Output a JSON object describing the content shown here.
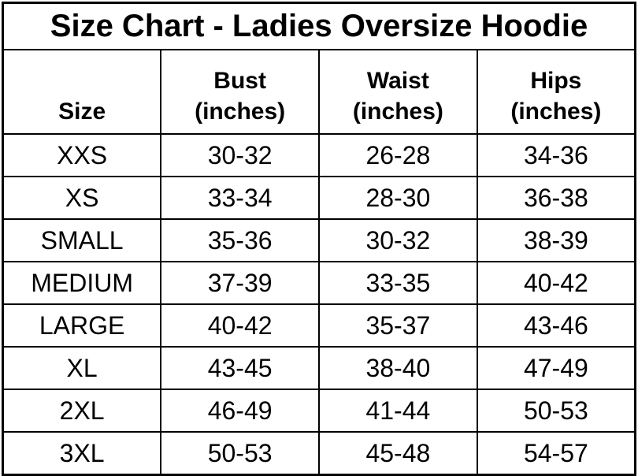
{
  "title": "Size Chart - Ladies Oversize Hoodie",
  "colors": {
    "background": "#ffffff",
    "border": "#000000",
    "text": "#000000"
  },
  "headers": {
    "size": "Size",
    "bust_line1": "Bust",
    "bust_line2": "(inches)",
    "waist_line1": "Waist",
    "waist_line2": "(inches)",
    "hips_line1": "Hips",
    "hips_line2": "(inches)"
  },
  "chart_data": {
    "type": "table",
    "title": "Size Chart - Ladies Oversize Hoodie",
    "columns": [
      "Size",
      "Bust (inches)",
      "Waist (inches)",
      "Hips (inches)"
    ],
    "rows": [
      [
        "XXS",
        "30-32",
        "26-28",
        "34-36"
      ],
      [
        "XS",
        "33-34",
        "28-30",
        "36-38"
      ],
      [
        "SMALL",
        "35-36",
        "30-32",
        "38-39"
      ],
      [
        "MEDIUM",
        "37-39",
        "33-35",
        "40-42"
      ],
      [
        "LARGE",
        "40-42",
        "35-37",
        "43-46"
      ],
      [
        "XL",
        "43-45",
        "38-40",
        "47-49"
      ],
      [
        "2XL",
        "46-49",
        "41-44",
        "50-53"
      ],
      [
        "3XL",
        "50-53",
        "45-48",
        "54-57"
      ]
    ]
  }
}
